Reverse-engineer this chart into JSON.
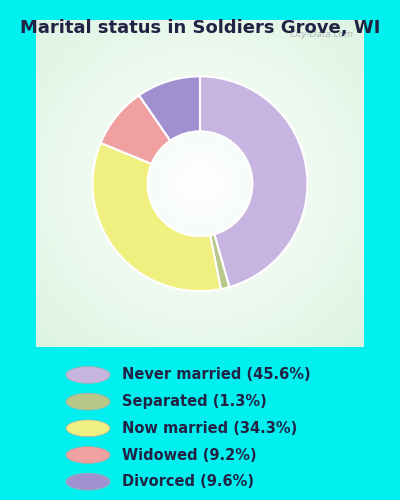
{
  "title": "Marital status in Soldiers Grove, WI",
  "title_fontsize": 13,
  "title_color": "#222244",
  "bg_color": "#00f0f0",
  "chart_bg_color": "#e8f5e9",
  "slices": [
    {
      "label": "Never married (45.6%)",
      "value": 45.6,
      "color": "#c8b4e0"
    },
    {
      "label": "Separated (1.3%)",
      "value": 1.3,
      "color": "#b8c888"
    },
    {
      "label": "Now married (34.3%)",
      "value": 34.3,
      "color": "#f0f080"
    },
    {
      "label": "Widowed (9.2%)",
      "value": 9.2,
      "color": "#f0a0a0"
    },
    {
      "label": "Divorced (9.6%)",
      "value": 9.6,
      "color": "#a090d0"
    }
  ],
  "donut_width": 0.42,
  "start_angle": 90,
  "watermark": "City-Data.com",
  "legend_fontsize": 10.5,
  "legend_text_color": "#222244"
}
